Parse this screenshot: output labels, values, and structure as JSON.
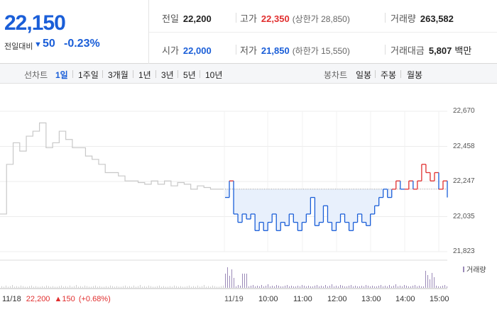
{
  "quote": {
    "price": "22,150",
    "prev_label": "전일대비",
    "change_icon": "down-triangle-icon",
    "change_glyph": "▼",
    "change": "50",
    "change_rate": "-0.23%"
  },
  "stats": {
    "prev_close": {
      "label": "전일",
      "value": "22,200"
    },
    "high": {
      "label": "고가",
      "value": "22,350",
      "sub": "(상한가 28,850)"
    },
    "volume": {
      "label": "거래량",
      "value": "263,582"
    },
    "open": {
      "label": "시가",
      "value": "22,000"
    },
    "low": {
      "label": "저가",
      "value": "21,850",
      "sub": "(하한가 15,550)"
    },
    "amount": {
      "label": "거래대금",
      "value": "5,807",
      "unit": "백만"
    }
  },
  "tabs": {
    "line_label": "선차트",
    "line": [
      "1일",
      "1주일",
      "3개월",
      "1년",
      "3년",
      "5년",
      "10년"
    ],
    "active": "1일",
    "candle_label": "봉차트",
    "candle": [
      "일봉",
      "주봉",
      "월봉"
    ]
  },
  "colors": {
    "up": "#e12f2f",
    "down": "#1a5ed8",
    "prev_day": "#c8c8c8",
    "fill": "#e8f0fc",
    "volume": "#9b8ab8"
  },
  "chart_data": {
    "type": "line",
    "y_ticks": [
      "22,670",
      "22,458",
      "22,247",
      "22,035",
      "21,823"
    ],
    "ylim": [
      21823,
      22670
    ],
    "baseline": 22200,
    "x_ticks": [
      "11/19",
      "10:00",
      "11:00",
      "12:00",
      "13:00",
      "14:00",
      "15:00"
    ],
    "volume_legend": "거래량",
    "prev_day_summary": {
      "date": "11/18",
      "close": "22,200",
      "change_glyph": "▲",
      "change": "150",
      "rate": "(+0.68%)"
    },
    "series": [
      {
        "values": [
          22050,
          22350,
          22480,
          22430,
          22520,
          22550,
          22600,
          22450,
          22480,
          22550,
          22500,
          22450,
          22450,
          22400,
          22380,
          22350,
          22300,
          22300,
          22280,
          22250,
          22250,
          22240,
          22230,
          22250,
          22230,
          22250,
          22220,
          22240,
          22230,
          22200,
          22220,
          22210,
          22200,
          22200,
          22200
        ]
      },
      {
        "values": [
          22150,
          22250,
          22050,
          22000,
          22050,
          22020,
          22050,
          21950,
          22000,
          21950,
          22000,
          22050,
          21950,
          22000,
          21980,
          22050,
          22000,
          21950,
          22000,
          22050,
          22150,
          21980,
          22000,
          22100,
          22000,
          21950,
          22000,
          22050,
          22000,
          21950,
          22000,
          22050,
          22000,
          21980,
          22050,
          22100,
          22150,
          22200,
          22150,
          22200,
          22250,
          22200,
          22200,
          22250,
          22200,
          22250,
          22350,
          22300,
          22250,
          22300,
          22200,
          22250,
          22150
        ]
      }
    ]
  }
}
